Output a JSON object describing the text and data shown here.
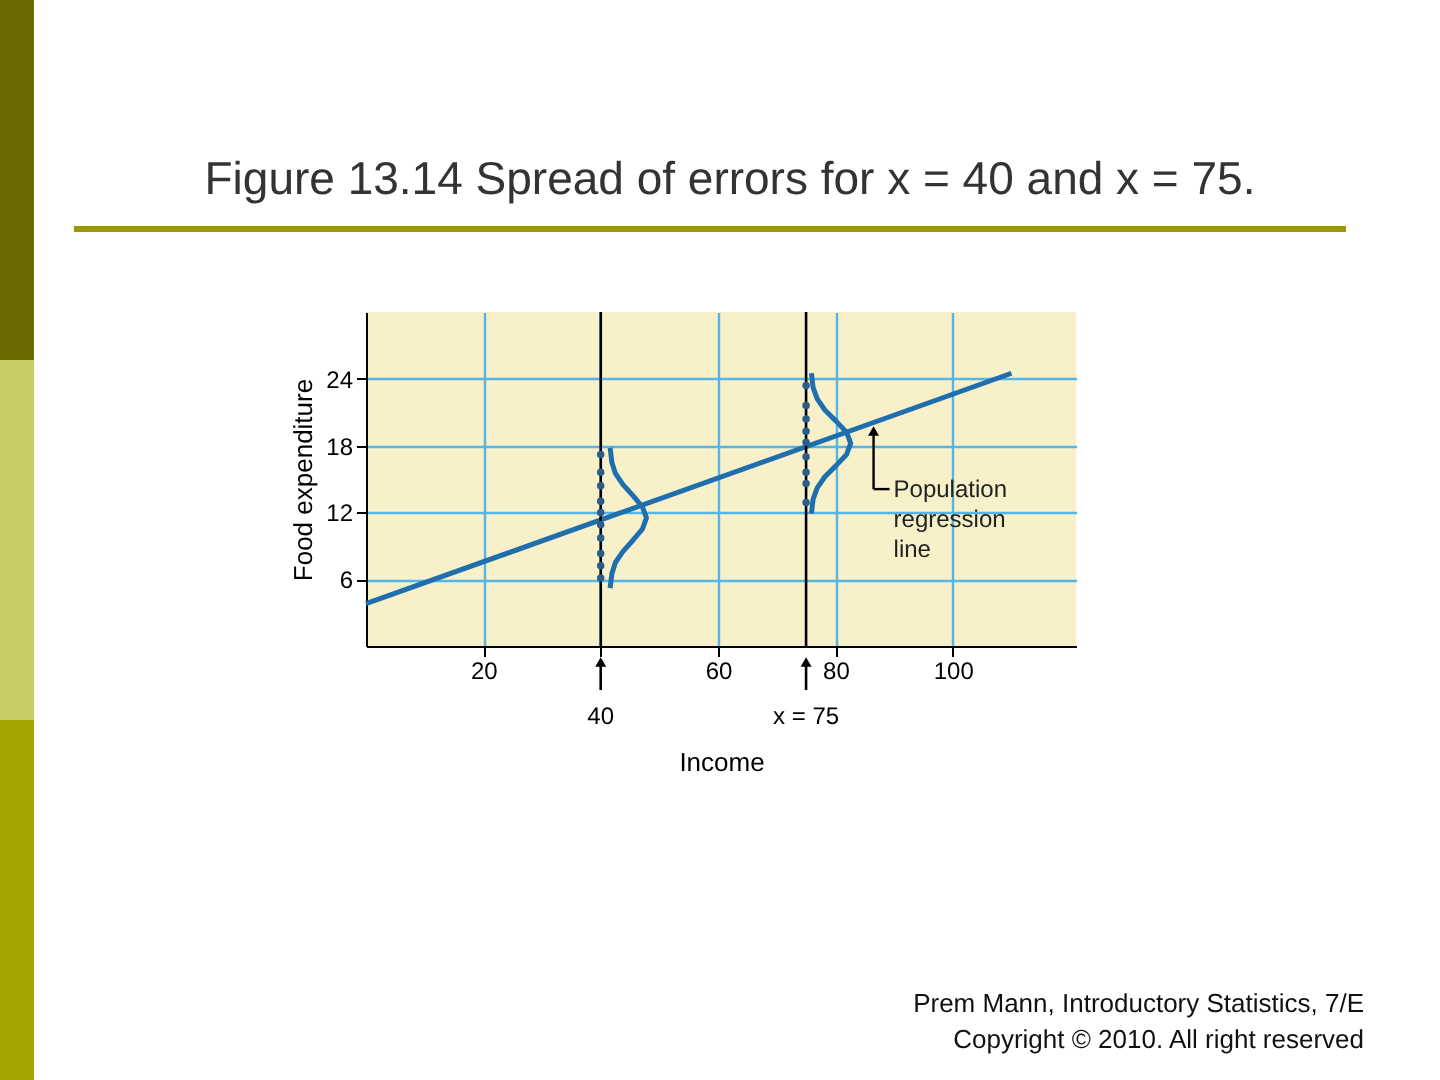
{
  "chart_data": {
    "type": "line",
    "title": "Figure 13.14 Spread of errors for x = 40 and x = 75.",
    "xlabel": "Income",
    "ylabel": "Food expenditure",
    "xlim": [
      0,
      121
    ],
    "ylim": [
      0,
      30
    ],
    "xticks": [
      20,
      {
        "value": 40,
        "label": null
      },
      60,
      80,
      100
    ],
    "yticks": [
      6,
      12,
      18,
      24
    ],
    "grid": true,
    "series": [
      {
        "color": "#1f6fae",
        "x": [
          0,
          110
        ],
        "values": [
          3.8,
          24.5
        ]
      },
      {
        "color": "#1f6fae",
        "x": [
          41.6,
          41.9,
          42.5,
          43.8,
          45.5,
          47.1,
          47.8,
          47.1,
          45.5,
          43.8,
          42.5,
          41.9,
          41.6
        ],
        "values": [
          5.2,
          6.5,
          7.5,
          8.5,
          9.5,
          10.5,
          11.5,
          12.5,
          13.5,
          14.5,
          15.5,
          16.5,
          17.8
        ]
      },
      {
        "color": "#1f6fae",
        "x": [
          75.9,
          76.2,
          76.9,
          78.2,
          80.1,
          81.9,
          82.6,
          81.9,
          80.1,
          78.2,
          76.9,
          76.2,
          75.9
        ],
        "values": [
          11.9,
          13.2,
          14.2,
          15.2,
          16.2,
          17.2,
          18.2,
          19.2,
          20.2,
          21.2,
          22.2,
          23.2,
          24.5
        ]
      },
      {
        "type": "scatter",
        "color": "#2a5d8a",
        "marker": "circle",
        "x": [
          40,
          40,
          40,
          40,
          40,
          40,
          40,
          40,
          40,
          40
        ],
        "values": [
          17.2,
          15.6,
          14.4,
          13.0,
          12.0,
          10.9,
          9.7,
          8.3,
          7.2,
          6.1
        ]
      },
      {
        "type": "scatter",
        "color": "#2a5d8a",
        "marker": "circle",
        "x": [
          75,
          75,
          75,
          75,
          75,
          75,
          75,
          75,
          75
        ],
        "values": [
          23.4,
          21.6,
          20.4,
          19.3,
          18.3,
          17.0,
          15.6,
          14.6,
          12.9
        ]
      }
    ],
    "ref_lines": [
      {
        "axis": "x",
        "value": 40,
        "label": "40",
        "color": "#000000"
      },
      {
        "axis": "x",
        "value": 75,
        "label": "x = 75",
        "color": "#000000"
      }
    ],
    "annotations": [
      {
        "text": "Population regression line",
        "x": 86.5,
        "y": 20.2
      },
      "Prem Mann, Introductory Statistics, 7/E",
      "Copyright © 2010. All right reserved"
    ]
  }
}
